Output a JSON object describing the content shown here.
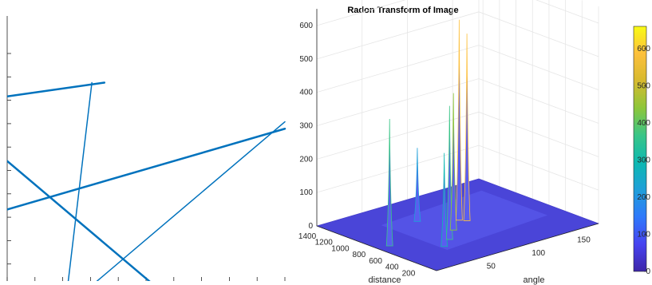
{
  "figure": {
    "title": "Radon Transform of Image"
  },
  "chart_data": [
    {
      "type": "line",
      "title": "",
      "xlabel": "",
      "ylabel": "",
      "xlim": [
        0,
        100
      ],
      "ylim": [
        0,
        100
      ],
      "grid": false,
      "series": [
        {
          "x": [
            0,
            35
          ],
          "y": [
            80,
            86
          ],
          "width": 2.5,
          "color": "#0072BD"
        },
        {
          "x": [
            30.5,
            21.5
          ],
          "y": [
            86,
            -5
          ],
          "width": 1.5,
          "color": "#0072BD"
        },
        {
          "x": [
            0,
            100
          ],
          "y": [
            31,
            66
          ],
          "width": 2.5,
          "color": "#0072BD"
        },
        {
          "x": [
            27.5,
            100
          ],
          "y": [
            -5,
            69
          ],
          "width": 1.5,
          "color": "#0072BD"
        },
        {
          "x": [
            0,
            56
          ],
          "y": [
            52,
            -5
          ],
          "width": 2.5,
          "color": "#0072BD"
        }
      ]
    },
    {
      "type": "surface3d",
      "title": "Radon Transform of Image",
      "xlabel": "angle",
      "ylabel": "distance",
      "zlabel": "",
      "xlim": [
        0,
        179
      ],
      "ylim": [
        0,
        1450
      ],
      "zlim": [
        0,
        650
      ],
      "xticks": [
        50,
        100,
        150
      ],
      "yticks": [
        200,
        400,
        600,
        800,
        1000,
        1200,
        1400
      ],
      "zticks": [
        0,
        100,
        200,
        300,
        400,
        500,
        600
      ],
      "peaks": [
        {
          "angle": 12,
          "distance": 700,
          "value": 380
        },
        {
          "angle": 45,
          "distance": 400,
          "value": 280
        },
        {
          "angle": 60,
          "distance": 500,
          "value": 400
        },
        {
          "angle": 78,
          "distance": 650,
          "value": 410
        },
        {
          "angle": 98,
          "distance": 800,
          "value": 600
        },
        {
          "angle": 102,
          "distance": 750,
          "value": 560
        },
        {
          "angle": 70,
          "distance": 1000,
          "value": 220
        }
      ],
      "colorbar": {
        "ticks": [
          0,
          100,
          200,
          300,
          400,
          500,
          600
        ],
        "range": [
          0,
          660
        ],
        "colormap": [
          "#3e26a8",
          "#4743f0",
          "#2f79fb",
          "#1f9fd9",
          "#0db9b1",
          "#39c587",
          "#8dc63a",
          "#d7ba2e",
          "#fdc03d",
          "#f9fb15"
        ]
      }
    }
  ]
}
